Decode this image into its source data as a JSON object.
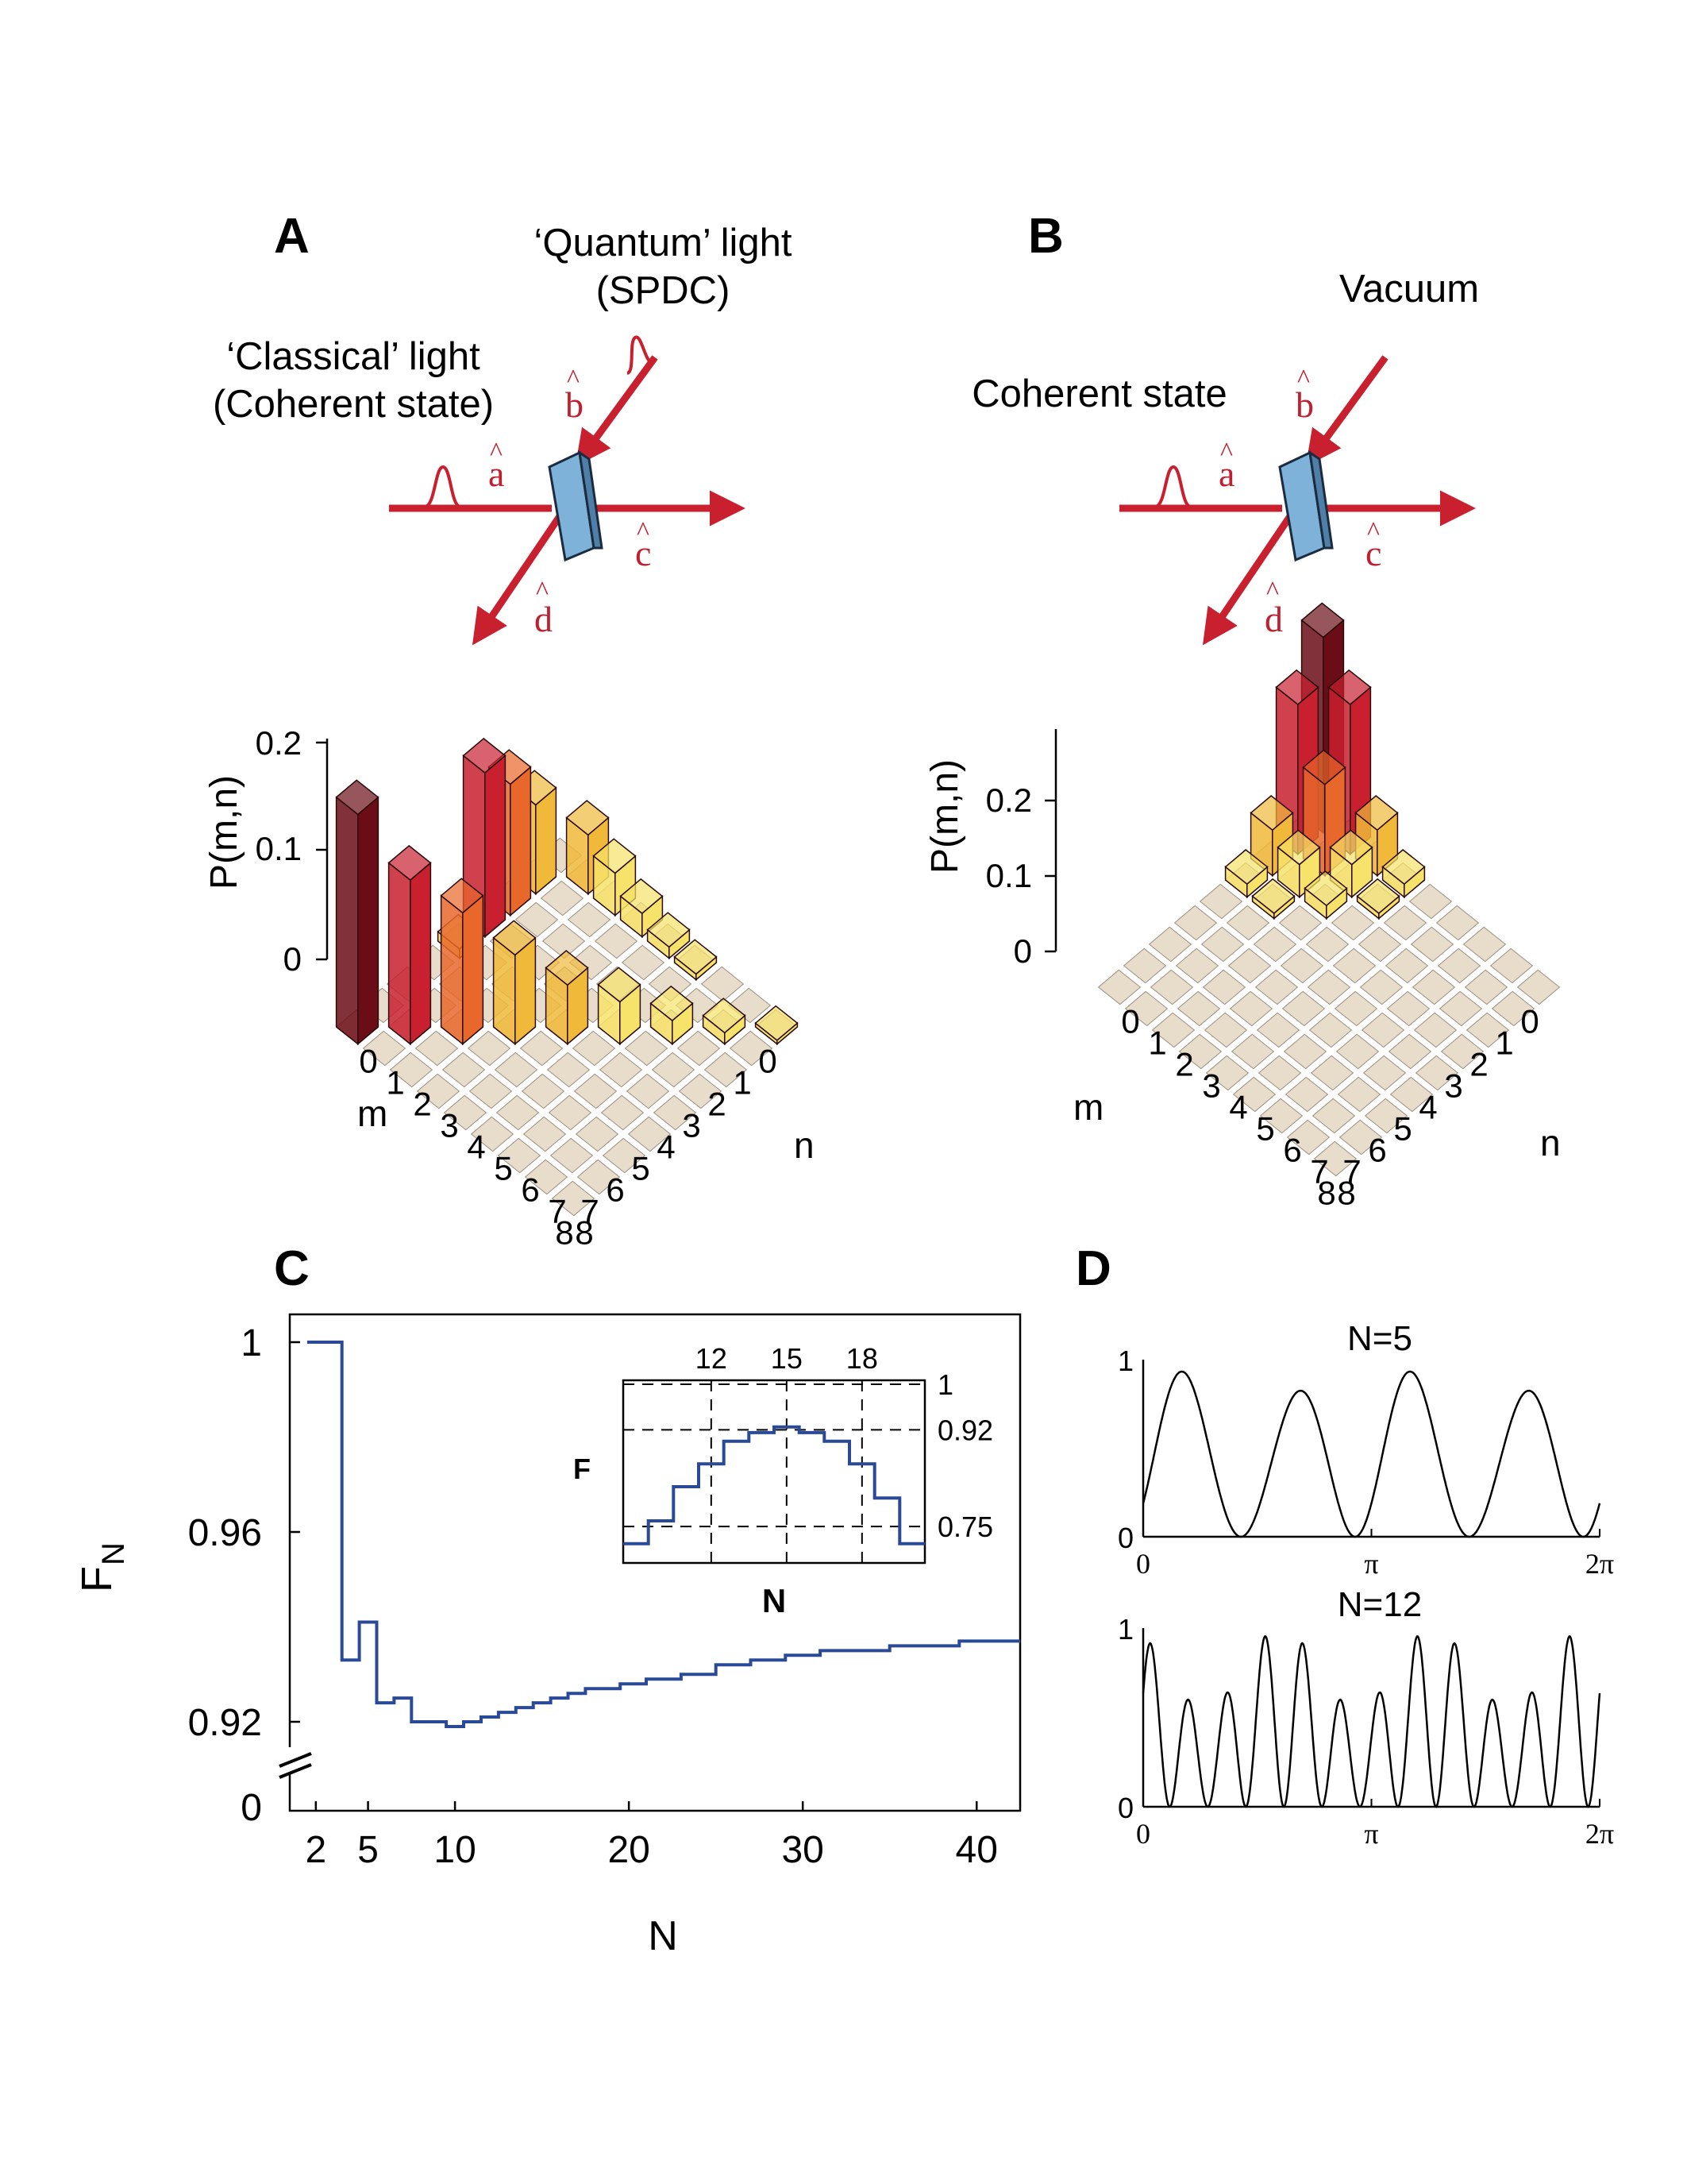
{
  "panels": {
    "A": "A",
    "B": "B",
    "C": "C",
    "D": "D"
  },
  "colors": {
    "beam": "#c8202f",
    "splitter": "#7fb2d9",
    "floor_tile": "#e8dccb",
    "curve": "#2a4a97",
    "bar_scale": [
      "#f7e26a",
      "#f0b93a",
      "#e8672a",
      "#c8202f",
      "#6b0d17"
    ]
  },
  "diagram_A": {
    "quantum_label_1": "‘Quantum’ light",
    "quantum_label_2": "(SPDC)",
    "classical_label_1": "‘Classical’ light",
    "classical_label_2": "(Coherent state)",
    "ops": {
      "a": "a",
      "b": "b",
      "c": "c",
      "d": "d"
    }
  },
  "diagram_B": {
    "vacuum_label": "Vacuum",
    "coherent_label": "Coherent state",
    "ops": {
      "a": "a",
      "b": "b",
      "c": "c",
      "d": "d"
    }
  },
  "chart_data": [
    {
      "panel": "A",
      "type": "bar3d",
      "zlabel": "P(m,n)",
      "xlabel": "m",
      "ylabel": "n",
      "m_ticks": [
        "0",
        "1",
        "2",
        "3",
        "4",
        "5",
        "6",
        "7",
        "8"
      ],
      "n_ticks": [
        "8",
        "7",
        "6",
        "5",
        "4",
        "3",
        "2",
        "1",
        "0"
      ],
      "z_ticks": [
        "0",
        "0.1",
        "0.2"
      ],
      "z_max": 0.25,
      "note": "nonzero bars along m+n=8 anti-diagonal",
      "bars": [
        {
          "m": 0,
          "n": 8,
          "p": 0.004
        },
        {
          "m": 1,
          "n": 7,
          "p": 0.012
        },
        {
          "m": 2,
          "n": 6,
          "p": 0.025
        },
        {
          "m": 3,
          "n": 5,
          "p": 0.045
        },
        {
          "m": 4,
          "n": 4,
          "p": 0.063
        },
        {
          "m": 5,
          "n": 3,
          "p": 0.095
        },
        {
          "m": 6,
          "n": 2,
          "p": 0.14
        },
        {
          "m": 7,
          "n": 1,
          "p": 0.175
        },
        {
          "m": 8,
          "n": 0,
          "p": 0.245
        },
        {
          "m": 3,
          "n": 0,
          "p": 0.175
        },
        {
          "m": 2,
          "n": 0,
          "p": 0.14
        },
        {
          "m": 1,
          "n": 0,
          "p": 0.095
        },
        {
          "m": 0,
          "n": 1,
          "p": 0.063
        },
        {
          "m": 0,
          "n": 2,
          "p": 0.045
        },
        {
          "m": 0,
          "n": 3,
          "p": 0.025
        },
        {
          "m": 0,
          "n": 4,
          "p": 0.012
        },
        {
          "m": 0,
          "n": 5,
          "p": 0.006
        },
        {
          "m": 4,
          "n": 0,
          "p": 0.01
        }
      ]
    },
    {
      "panel": "B",
      "type": "bar3d",
      "zlabel": "P(m,n)",
      "xlabel": "m",
      "ylabel": "n",
      "m_ticks": [
        "0",
        "1",
        "2",
        "3",
        "4",
        "5",
        "6",
        "7",
        "8"
      ],
      "n_ticks": [
        "8",
        "7",
        "6",
        "5",
        "4",
        "3",
        "2",
        "1",
        "0"
      ],
      "z_ticks": [
        "0",
        "0.1",
        "0.2"
      ],
      "z_max": 0.3
    },
    {
      "panel": "C",
      "type": "line",
      "xlabel": "N",
      "ylabel": "F",
      "ylabel_sub": "N",
      "x_ticks": [
        "2",
        "5",
        "10",
        "20",
        "30",
        "40"
      ],
      "y_ticks": [
        "0",
        "0.92",
        "0.96",
        "1"
      ],
      "x": [
        2,
        3,
        4,
        5,
        6,
        7,
        8,
        9,
        10,
        11,
        12,
        13,
        14,
        15,
        16,
        17,
        18,
        19,
        20,
        22,
        24,
        26,
        28,
        30,
        32,
        34,
        36,
        38,
        40,
        42
      ],
      "y": [
        1.0,
        1.0,
        0.933,
        0.941,
        0.924,
        0.925,
        0.92,
        0.92,
        0.919,
        0.92,
        0.921,
        0.922,
        0.923,
        0.924,
        0.925,
        0.926,
        0.927,
        0.927,
        0.928,
        0.929,
        0.93,
        0.932,
        0.933,
        0.934,
        0.935,
        0.935,
        0.936,
        0.936,
        0.937,
        0.937
      ]
    },
    {
      "panel": "C-inset",
      "type": "line",
      "xlabel": "N",
      "ylabel": "F",
      "x_ticks": [
        "12",
        "15",
        "18"
      ],
      "y_ticks": [
        "0.75",
        "0.92",
        "1"
      ],
      "x": [
        9,
        10,
        11,
        12,
        13,
        14,
        15,
        16,
        17,
        18,
        19,
        20
      ],
      "y": [
        0.72,
        0.76,
        0.82,
        0.86,
        0.9,
        0.915,
        0.925,
        0.915,
        0.9,
        0.86,
        0.8,
        0.72
      ]
    },
    {
      "panel": "D-top",
      "type": "line",
      "title": "N=5",
      "x_ticks": [
        "0",
        "π",
        "2π"
      ],
      "y_ticks": [
        "0",
        "1"
      ],
      "N": 5
    },
    {
      "panel": "D-bottom",
      "type": "line",
      "title": "N=12",
      "x_ticks": [
        "0",
        "π",
        "2π"
      ],
      "y_ticks": [
        "0",
        "1"
      ],
      "N": 12
    }
  ]
}
